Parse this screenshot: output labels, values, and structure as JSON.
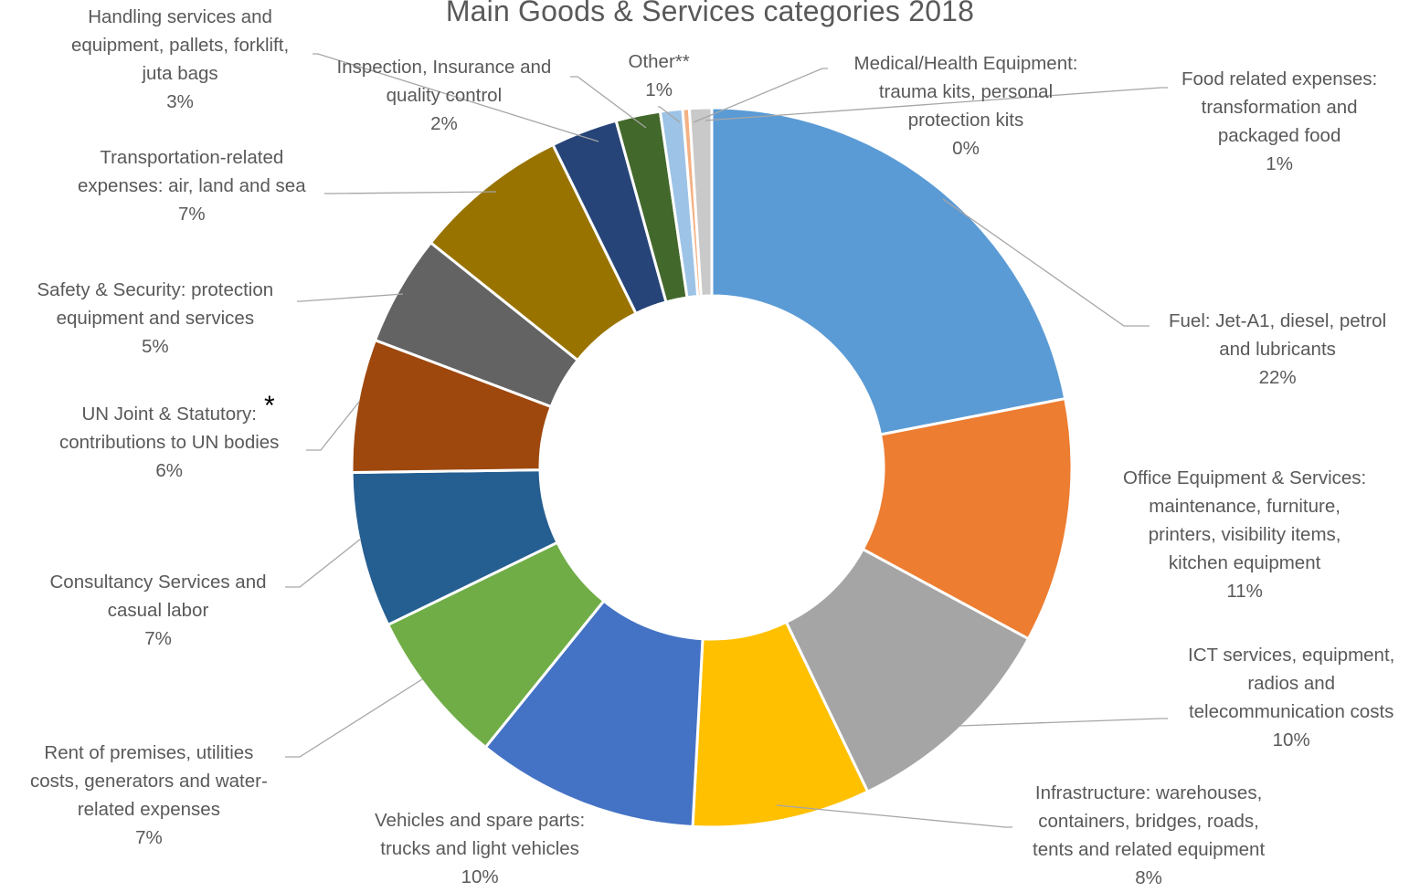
{
  "chart_data": {
    "type": "pie",
    "donut": true,
    "title": "Main Goods & Services categories 2018",
    "slices": [
      {
        "label": "Fuel: Jet-A1, diesel, petrol and lubricants",
        "lines": [
          "Fuel: Jet-A1, diesel, petrol",
          "and lubricants"
        ],
        "value": 22,
        "pct_label": "22%",
        "color": "#5B9BD5"
      },
      {
        "label": "Office Equipment & Services: maintenance, furniture, printers, visibility items, kitchen equipment",
        "lines": [
          "Office Equipment & Services:",
          "maintenance, furniture,",
          "printers, visibility items,",
          "kitchen equipment"
        ],
        "value": 11,
        "pct_label": "11%",
        "color": "#ED7D31"
      },
      {
        "label": "ICT services, equipment, radios and telecommunication costs",
        "lines": [
          "ICT services, equipment,",
          "radios and",
          "telecommunication costs"
        ],
        "value": 10,
        "pct_label": "10%",
        "color": "#A5A5A5"
      },
      {
        "label": "Infrastructure: warehouses, containers, bridges, roads, tents and related equipment",
        "lines": [
          "Infrastructure: warehouses,",
          "containers, bridges, roads,",
          "tents and related equipment"
        ],
        "value": 8,
        "pct_label": "8%",
        "color": "#FFC000"
      },
      {
        "label": "Vehicles and spare parts: trucks and light vehicles",
        "lines": [
          "Vehicles and spare parts:",
          "trucks and light vehicles"
        ],
        "value": 10,
        "pct_label": "10%",
        "color": "#4472C4"
      },
      {
        "label": "Rent of premises, utilities costs, generators and water-related expenses",
        "lines": [
          "Rent of premises, utilities",
          "costs, generators and water-",
          "related expenses"
        ],
        "value": 7,
        "pct_label": "7%",
        "color": "#70AD47"
      },
      {
        "label": "Consultancy Services and casual labor",
        "lines": [
          "Consultancy Services and",
          "casual labor"
        ],
        "value": 7,
        "pct_label": "7%",
        "color": "#255E91"
      },
      {
        "label": "UN Joint & Statutory: contributions to UN bodies",
        "lines": [
          "UN Joint & Statutory:",
          "contributions to UN bodies"
        ],
        "value": 6,
        "pct_label": "6%",
        "color": "#9E480E"
      },
      {
        "label": "Safety & Security: protection equipment and services",
        "lines": [
          "Safety & Security: protection",
          "equipment and services"
        ],
        "value": 5,
        "pct_label": "5%",
        "color": "#636363"
      },
      {
        "label": "Transportation-related expenses: air, land and sea",
        "lines": [
          "Transportation-related",
          "expenses: air, land and sea"
        ],
        "value": 7,
        "pct_label": "7%",
        "color": "#997300"
      },
      {
        "label": "Handling services and equipment, pallets, forklift, juta bags",
        "lines": [
          "Handling services and",
          "equipment, pallets, forklift,",
          "juta bags"
        ],
        "value": 3,
        "pct_label": "3%",
        "color": "#264478"
      },
      {
        "label": "Inspection, Insurance and quality control",
        "lines": [
          "Inspection, Insurance and",
          "quality control"
        ],
        "value": 2,
        "pct_label": "2%",
        "color": "#43682B"
      },
      {
        "label": "Other**",
        "lines": [
          "Other**"
        ],
        "value": 1,
        "pct_label": "1%",
        "color": "#9DC3E6"
      },
      {
        "label": "Medical/Health Equipment: trauma kits, personal protection kits",
        "lines": [
          "Medical/Health Equipment:",
          "trauma kits, personal",
          "protection kits"
        ],
        "value": 0.3,
        "pct_label": "0%",
        "color": "#F4B183"
      },
      {
        "label": "Food related expenses: transformation and packaged food",
        "lines": [
          "Food related expenses:",
          "transformation and",
          "packaged food"
        ],
        "value": 1,
        "pct_label": "1%",
        "color": "#C9C9C9"
      }
    ],
    "legend": "none",
    "footnote_marker": "*"
  }
}
